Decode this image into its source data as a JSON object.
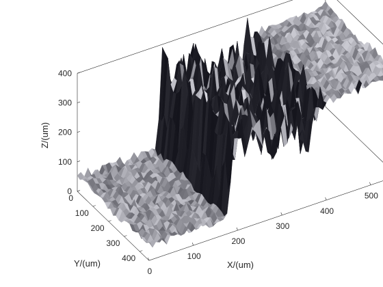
{
  "chart_data": {
    "type": "surface",
    "title": "",
    "xlabel": "X/(um)",
    "ylabel": "Y/(um)",
    "zlabel": "Z/(um)",
    "xlim": [
      0,
      560
    ],
    "ylim": [
      0,
      460
    ],
    "zlim": [
      0,
      400
    ],
    "x_ticks": [
      "0",
      "100",
      "200",
      "300",
      "400",
      "500"
    ],
    "x_tick_values": [
      0,
      100,
      200,
      300,
      400,
      500
    ],
    "y_ticks": [
      "0",
      "100",
      "200",
      "300",
      "400"
    ],
    "y_tick_values": [
      0,
      100,
      200,
      300,
      400
    ],
    "z_ticks": [
      "0",
      "100",
      "200",
      "300",
      "400"
    ],
    "z_tick_values": [
      0,
      100,
      200,
      300,
      400
    ],
    "grid": false,
    "colormap": "gray",
    "profile_x": [
      0,
      100,
      180,
      190,
      220,
      250,
      280,
      310,
      340,
      360,
      380,
      400,
      460,
      560
    ],
    "profile_z": [
      50,
      50,
      50,
      320,
      290,
      340,
      230,
      260,
      300,
      220,
      320,
      330,
      340,
      345
    ]
  }
}
